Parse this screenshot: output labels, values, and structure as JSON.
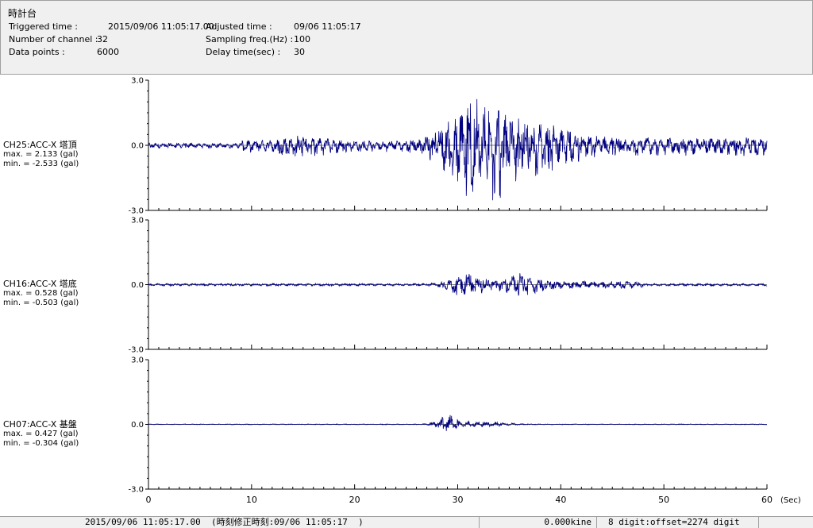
{
  "header": {
    "title": "時計台",
    "triggered_label": "Triggered time :",
    "triggered_value": "2015/09/06 11:05:17.00",
    "channels_label": "Number of channel :",
    "channels_value": "32",
    "points_label": "Data points :",
    "points_value": "6000",
    "adjusted_label": "Adjusted time :",
    "adjusted_value": "09/06 11:05:17",
    "sampling_label": "Sampling freq.(Hz) :",
    "sampling_value": "100",
    "delay_label": "Delay time(sec) :",
    "delay_value": "30"
  },
  "channels": [
    {
      "name": "CH25:ACC-X 塔頂",
      "max_text": "max. = 2.133 (gal)",
      "min_text": "min. = -2.533 (gal)",
      "max": 2.133,
      "min": -2.533
    },
    {
      "name": "CH16:ACC-X 塔底",
      "max_text": "max. = 0.528 (gal)",
      "min_text": "min. = -0.503 (gal)",
      "max": 0.528,
      "min": -0.503
    },
    {
      "name": "CH07:ACC-X 基盤",
      "max_text": "max. = 0.427 (gal)",
      "min_text": "min. = -0.304 (gal)",
      "max": 0.427,
      "min": -0.304
    }
  ],
  "chart_data": {
    "type": "line",
    "xlim": [
      0,
      60
    ],
    "ylim": [
      -3.0,
      3.0
    ],
    "x_ticks": [
      "0",
      "10",
      "20",
      "30",
      "40",
      "50",
      "60"
    ],
    "y_ticks": [
      "3.0",
      "0.0",
      "-3.0"
    ],
    "xunit": "(Sec)",
    "series_color": "#000080"
  },
  "status": {
    "time": "2015/09/06 11:05:17.00  (時刻修正時刻:09/06 11:05:17  )",
    "velocity": "0.000kine",
    "digit": "8 digit:offset=2274 digit"
  }
}
